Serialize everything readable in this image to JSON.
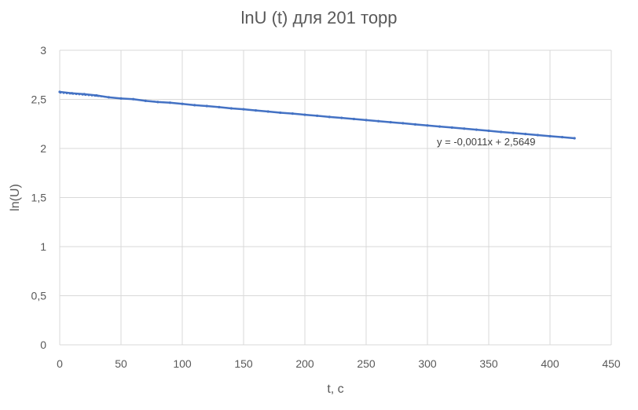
{
  "chart_data": {
    "type": "scatter",
    "title": "lnU (t) для 201 торр",
    "xlabel": "t, с",
    "ylabel": "ln(U)",
    "xlim": [
      0,
      450
    ],
    "ylim": [
      0,
      3
    ],
    "x_ticks": [
      "0",
      "50",
      "100",
      "150",
      "200",
      "250",
      "300",
      "350",
      "400",
      "450"
    ],
    "y_ticks": [
      "0",
      "0,5",
      "1",
      "1,5",
      "2",
      "2,5",
      "3"
    ],
    "grid": true,
    "legend": "none",
    "series": [
      {
        "color": "#4472C4",
        "x": [
          0,
          10,
          20,
          30,
          40,
          50,
          60,
          70,
          80,
          90,
          100,
          110,
          120,
          130,
          140,
          150,
          160,
          170,
          180,
          190,
          200,
          210,
          220,
          230,
          240,
          250,
          260,
          270,
          280,
          290,
          300,
          310,
          320,
          330,
          340,
          350,
          360,
          370,
          380,
          390,
          400,
          410,
          420
        ],
        "y": [
          2.576,
          2.562,
          2.553,
          2.54,
          2.521,
          2.509,
          2.502,
          2.485,
          2.473,
          2.466,
          2.454,
          2.441,
          2.432,
          2.421,
          2.408,
          2.399,
          2.387,
          2.376,
          2.364,
          2.355,
          2.343,
          2.333,
          2.321,
          2.311,
          2.3,
          2.289,
          2.278,
          2.267,
          2.257,
          2.245,
          2.234,
          2.223,
          2.213,
          2.202,
          2.191,
          2.18,
          2.168,
          2.158,
          2.147,
          2.136,
          2.125,
          2.115,
          2.104
        ]
      }
    ],
    "trendline": {
      "type": "linear",
      "slope": -0.0011,
      "intercept": 2.5649,
      "equation": "y = -0,0011x + 2,5649",
      "style": "dotted",
      "color": "#4472C4"
    }
  }
}
